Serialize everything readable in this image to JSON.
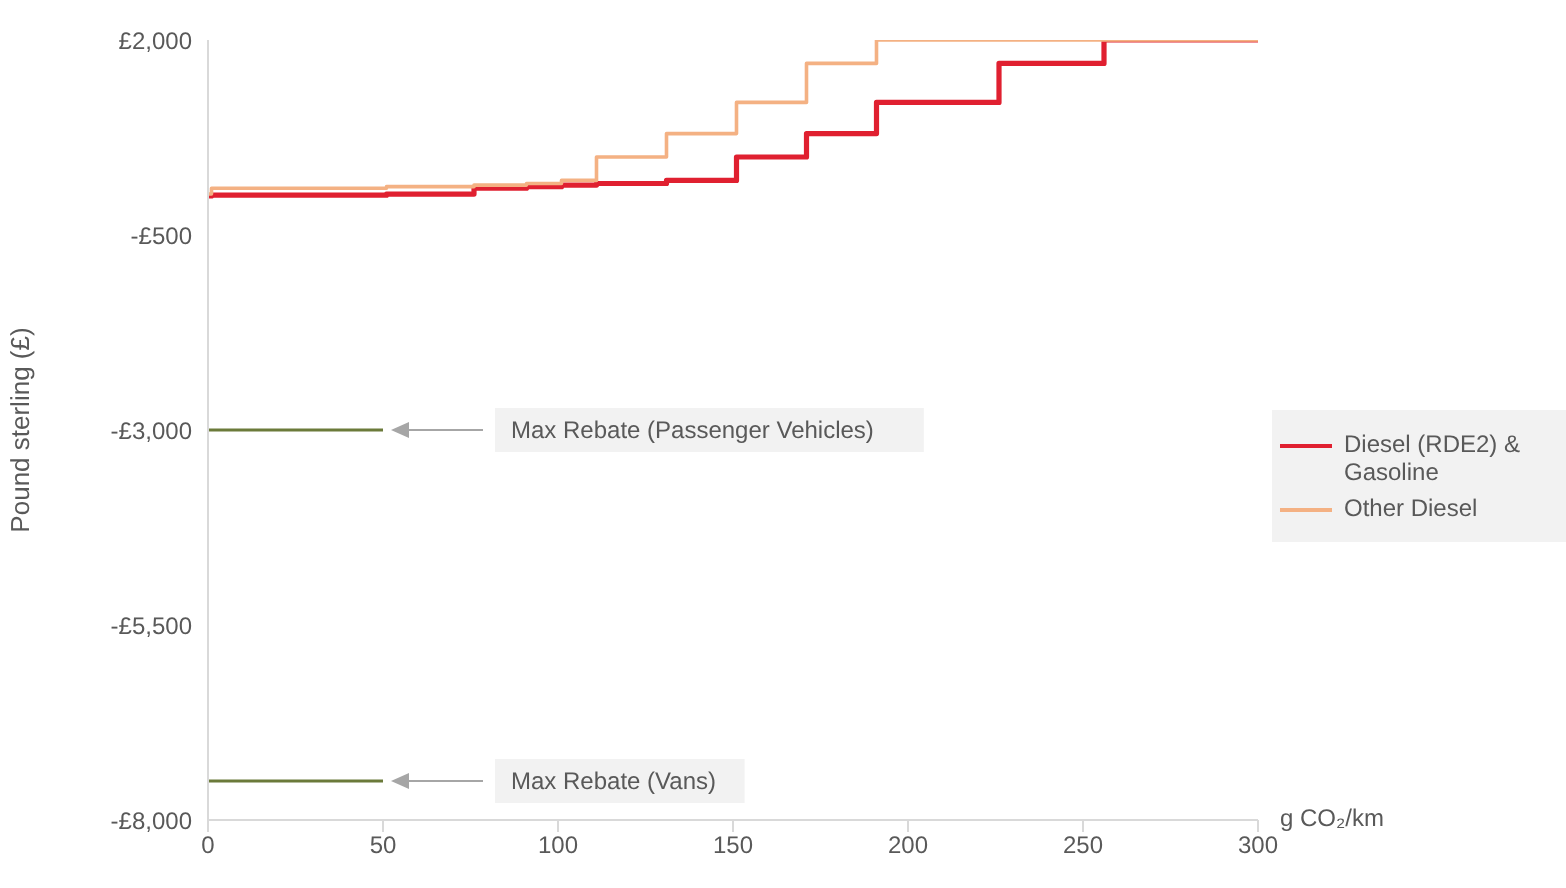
{
  "chart_data": {
    "type": "step",
    "xlabel": "g CO₂/km",
    "ylabel": "Pound sterling (£)",
    "xlim": [
      0,
      300
    ],
    "xticks": [
      0,
      50,
      100,
      150,
      200,
      250,
      300
    ],
    "ylim": [
      -8000,
      2000
    ],
    "yticks": [
      {
        "value": 2000,
        "label": "£2,000"
      },
      {
        "value": -500,
        "label": "-£500"
      },
      {
        "value": -3000,
        "label": "-£3,000"
      },
      {
        "value": -5500,
        "label": "-£5,500"
      },
      {
        "value": -8000,
        "label": "-£8,000"
      }
    ],
    "grid": false,
    "legend": "right",
    "marker": "none",
    "line_style": "solid",
    "series": [
      {
        "name": "Diesel (RDE2) & Gasoline",
        "color": "#e02030",
        "x": [
          0,
          1,
          51,
          76,
          91,
          101,
          111,
          131,
          151,
          171,
          191,
          226,
          256,
          300
        ],
        "values": [
          0,
          10,
          25,
          100,
          120,
          140,
          160,
          200,
          500,
          800,
          1200,
          1700,
          2000,
          2000
        ]
      },
      {
        "name": "Other Diesel",
        "color": "#f4b183",
        "x": [
          0,
          1,
          51,
          76,
          91,
          101,
          111,
          131,
          151,
          171,
          191,
          226,
          300
        ],
        "values": [
          25,
          100,
          120,
          140,
          160,
          200,
          500,
          800,
          1200,
          1700,
          2000,
          2000,
          2000
        ]
      },
      {
        "color": "#6b7a3a",
        "x": [
          0,
          50
        ],
        "values": [
          -3000,
          -3000
        ]
      },
      {
        "color": "#6b7a3a",
        "x": [
          0,
          50
        ],
        "values": [
          -7500,
          -7500
        ]
      }
    ],
    "annotations": [
      "Max Rebate (Passenger Vehicles)",
      "Max Rebate (Vans)"
    ]
  }
}
